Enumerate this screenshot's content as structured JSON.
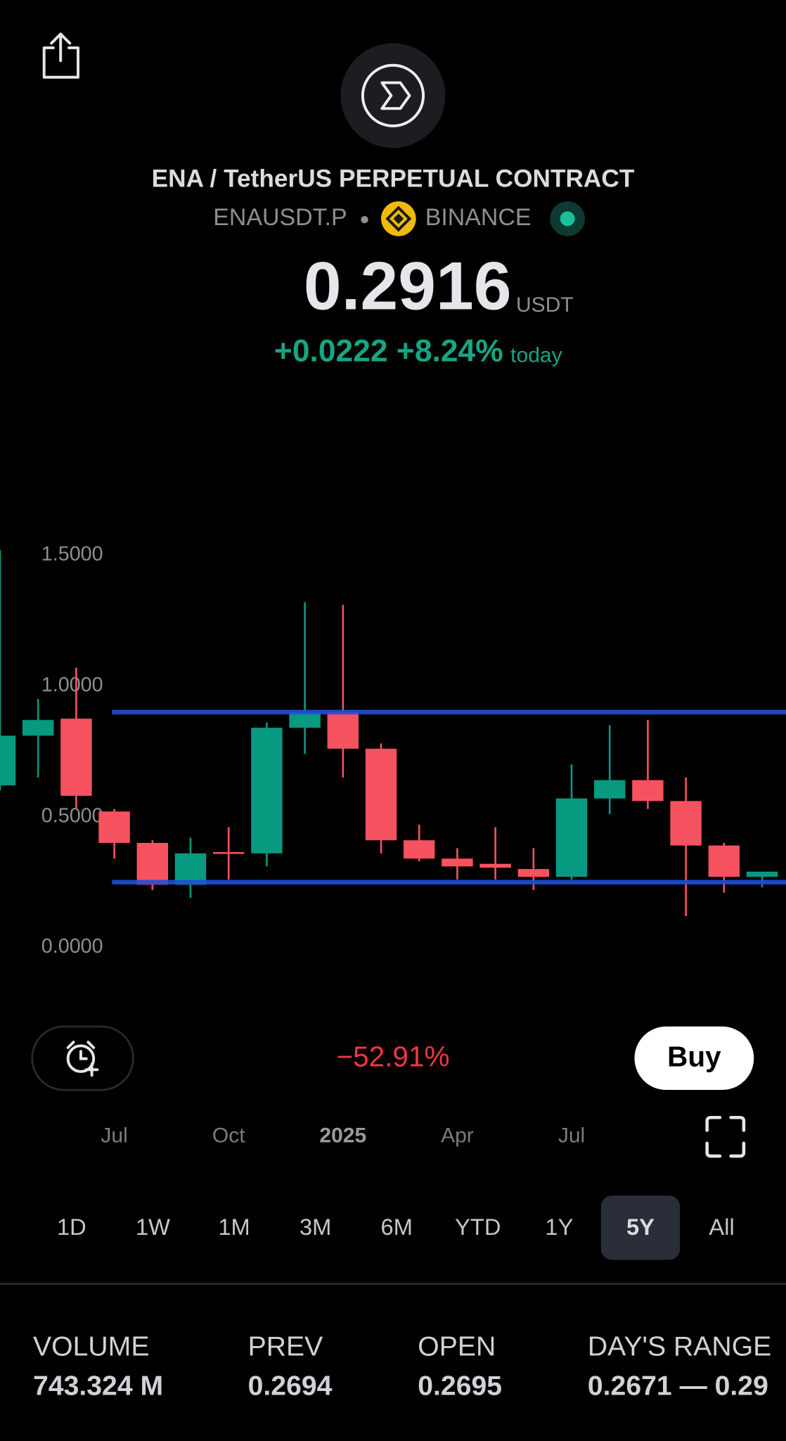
{
  "header": {
    "title": "ENA / TetherUS PERPETUAL CONTRACT",
    "symbol": "ENAUSDT.P",
    "exchange": "BINANCE"
  },
  "price": {
    "value": "0.2916",
    "currency": "USDT",
    "change": "+0.0222 +8.24%",
    "period": "today"
  },
  "chart_data": {
    "type": "candlestick",
    "categories": [
      null,
      null,
      null,
      "Jul",
      null,
      null,
      "Oct",
      null,
      null,
      "2025",
      null,
      null,
      "Apr",
      null,
      null,
      "Jul",
      null,
      null,
      null,
      null,
      null
    ],
    "open": [
      0.62,
      0.81,
      0.875,
      0.52,
      0.4,
      0.24,
      0.365,
      0.36,
      0.84,
      0.9,
      0.76,
      0.41,
      0.34,
      0.32,
      0.3,
      0.27,
      0.57,
      0.64,
      0.56,
      0.39,
      0.27
    ],
    "high": [
      1.52,
      0.95,
      1.07,
      0.53,
      0.41,
      0.42,
      0.46,
      0.86,
      1.32,
      1.31,
      0.78,
      0.47,
      0.38,
      0.46,
      0.38,
      0.7,
      0.85,
      0.87,
      0.65,
      0.4,
      0.29
    ],
    "low": [
      0.6,
      0.65,
      0.53,
      0.34,
      0.22,
      0.19,
      0.26,
      0.31,
      0.74,
      0.65,
      0.36,
      0.33,
      0.26,
      0.26,
      0.22,
      0.26,
      0.51,
      0.53,
      0.12,
      0.21,
      0.23
    ],
    "close": [
      0.81,
      0.87,
      0.58,
      0.4,
      0.24,
      0.36,
      0.36,
      0.84,
      0.9,
      0.76,
      0.41,
      0.34,
      0.31,
      0.305,
      0.27,
      0.57,
      0.64,
      0.56,
      0.39,
      0.27,
      0.29
    ],
    "up_color": "#089981",
    "down_color": "#f7525f",
    "levels": [
      0.9,
      0.25
    ],
    "level_color": "#1f4fd6",
    "ylim": [
      -0.1,
      1.65
    ],
    "yticks": [
      {
        "value": 0,
        "label": "0.0000"
      },
      {
        "value": 0.5,
        "label": "0.5000"
      },
      {
        "value": 1,
        "label": "1.0000"
      },
      {
        "value": 1.5,
        "label": "1.5000"
      }
    ],
    "performance": "−52.91%"
  },
  "controls": {
    "buy": "Buy",
    "timeframes": [
      "1D",
      "1W",
      "1M",
      "3M",
      "6M",
      "YTD",
      "1Y",
      "5Y",
      "All"
    ],
    "selected": 7
  },
  "stats": [
    {
      "label": "VOLUME",
      "value": "743.324 M"
    },
    {
      "label": "PREV",
      "value": "0.2694"
    },
    {
      "label": "OPEN",
      "value": "0.2695"
    },
    {
      "label": "DAY'S RANGE",
      "value": "0.2671 — 0.29"
    }
  ]
}
